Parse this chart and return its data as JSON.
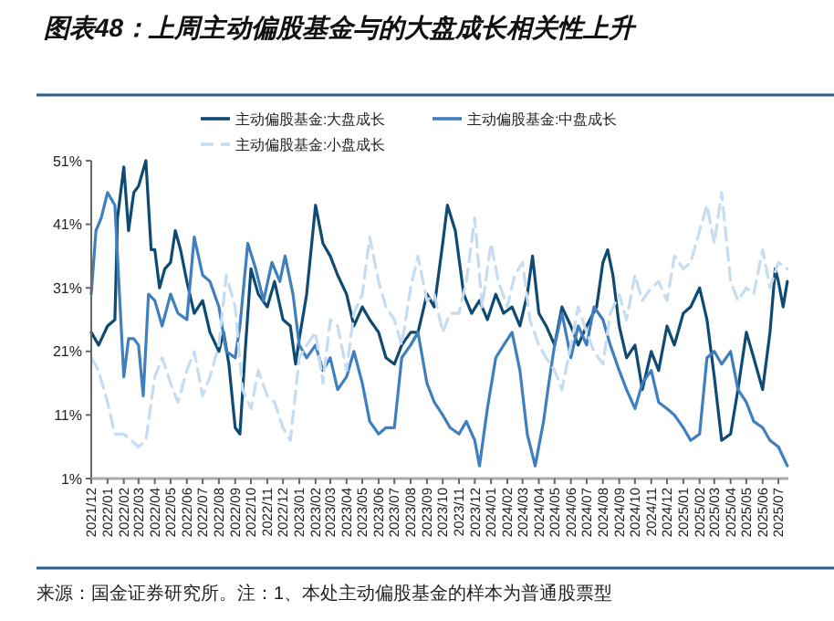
{
  "chart_data": {
    "type": "line",
    "title": "图表48：上周主动偏股基金与的大盘成长相关性上升",
    "annotations": [
      "来源：国金证券研究所。注：1、本处主动偏股基金的样本为普通股票型"
    ],
    "legend": "top",
    "grid": false,
    "xlim": [
      "2021-12-01",
      "2025-07-20"
    ],
    "ylim": [
      1,
      51
    ],
    "yticks": [
      {
        "value": 1,
        "label": "1%"
      },
      {
        "value": 11,
        "label": "11%"
      },
      {
        "value": 21,
        "label": "21%"
      },
      {
        "value": 31,
        "label": "31%"
      },
      {
        "value": 41,
        "label": "41%"
      },
      {
        "value": 51,
        "label": "51%"
      }
    ],
    "xticks": [
      {
        "value": "2021-12-01",
        "label": "2021/12"
      },
      {
        "value": "2022-01-01",
        "label": "2022/01"
      },
      {
        "value": "2022-02-01",
        "label": "2022/02"
      },
      {
        "value": "2022-03-01",
        "label": "2022/03"
      },
      {
        "value": "2022-04-01",
        "label": "2022/04"
      },
      {
        "value": "2022-05-01",
        "label": "2022/05"
      },
      {
        "value": "2022-06-01",
        "label": "2022/06"
      },
      {
        "value": "2022-07-01",
        "label": "2022/07"
      },
      {
        "value": "2022-08-01",
        "label": "2022/08"
      },
      {
        "value": "2022-09-01",
        "label": "2022/09"
      },
      {
        "value": "2022-10-01",
        "label": "2022/10"
      },
      {
        "value": "2022-11-01",
        "label": "2022/11"
      },
      {
        "value": "2022-12-01",
        "label": "2022/12"
      },
      {
        "value": "2023-01-01",
        "label": "2023/01"
      },
      {
        "value": "2023-02-01",
        "label": "2023/02"
      },
      {
        "value": "2023-03-01",
        "label": "2023/03"
      },
      {
        "value": "2023-04-01",
        "label": "2023/04"
      },
      {
        "value": "2023-05-01",
        "label": "2023/05"
      },
      {
        "value": "2023-06-01",
        "label": "2023/06"
      },
      {
        "value": "2023-07-01",
        "label": "2023/07"
      },
      {
        "value": "2023-08-01",
        "label": "2023/08"
      },
      {
        "value": "2023-09-01",
        "label": "2023/09"
      },
      {
        "value": "2023-10-01",
        "label": "2023/10"
      },
      {
        "value": "2023-11-01",
        "label": "2023/11"
      },
      {
        "value": "2023-12-01",
        "label": "2023/12"
      },
      {
        "value": "2024-01-01",
        "label": "2024/01"
      },
      {
        "value": "2024-02-01",
        "label": "2024/02"
      },
      {
        "value": "2024-03-01",
        "label": "2024/03"
      },
      {
        "value": "2024-04-01",
        "label": "2024/04"
      },
      {
        "value": "2024-05-01",
        "label": "2024/05"
      },
      {
        "value": "2024-06-01",
        "label": "2024/06"
      },
      {
        "value": "2024-07-01",
        "label": "2024/07"
      },
      {
        "value": "2024-08-01",
        "label": "2024/08"
      },
      {
        "value": "2024-09-01",
        "label": "2024/09"
      },
      {
        "value": "2024-10-01",
        "label": "2024/10"
      },
      {
        "value": "2024-11-01",
        "label": "2024/11"
      },
      {
        "value": "2024-12-01",
        "label": "2024/12"
      },
      {
        "value": "2025-01-01",
        "label": "2025/01"
      },
      {
        "value": "2025-02-01",
        "label": "2025/02"
      },
      {
        "value": "2025-03-01",
        "label": "2025/03"
      },
      {
        "value": "2025-04-01",
        "label": "2025/04"
      },
      {
        "value": "2025-05-01",
        "label": "2025/05"
      },
      {
        "value": "2025-06-01",
        "label": "2025/06"
      },
      {
        "value": "2025-07-01",
        "label": "2025/07"
      }
    ],
    "series": [
      {
        "name": "主动偏股基金:大盘成长",
        "color": "#0e4a72",
        "line_style": "solid",
        "x": [
          "2021-12-01",
          "2021-12-15",
          "2022-01-01",
          "2022-01-15",
          "2022-01-20",
          "2022-02-01",
          "2022-02-10",
          "2022-02-20",
          "2022-03-01",
          "2022-03-15",
          "2022-03-25",
          "2022-04-01",
          "2022-04-10",
          "2022-04-20",
          "2022-05-01",
          "2022-05-10",
          "2022-05-20",
          "2022-06-01",
          "2022-06-15",
          "2022-07-01",
          "2022-07-15",
          "2022-08-01",
          "2022-08-10",
          "2022-08-20",
          "2022-09-01",
          "2022-09-10",
          "2022-09-20",
          "2022-10-01",
          "2022-10-15",
          "2022-11-01",
          "2022-11-15",
          "2022-12-01",
          "2022-12-15",
          "2022-12-25",
          "2023-01-01",
          "2023-01-15",
          "2023-02-01",
          "2023-02-15",
          "2023-03-01",
          "2023-03-15",
          "2023-04-01",
          "2023-04-15",
          "2023-05-01",
          "2023-05-15",
          "2023-06-01",
          "2023-06-15",
          "2023-07-01",
          "2023-07-15",
          "2023-08-01",
          "2023-08-15",
          "2023-09-01",
          "2023-09-15",
          "2023-10-01",
          "2023-10-10",
          "2023-10-25",
          "2023-11-10",
          "2023-11-25",
          "2023-12-10",
          "2023-12-25",
          "2024-01-10",
          "2024-01-25",
          "2024-02-10",
          "2024-02-25",
          "2024-03-10",
          "2024-03-20",
          "2024-04-01",
          "2024-04-15",
          "2024-05-01",
          "2024-05-15",
          "2024-06-01",
          "2024-06-15",
          "2024-07-01",
          "2024-07-20",
          "2024-08-01",
          "2024-08-10",
          "2024-08-20",
          "2024-09-01",
          "2024-09-15",
          "2024-10-01",
          "2024-10-15",
          "2024-11-01",
          "2024-11-15",
          "2024-12-01",
          "2024-12-15",
          "2025-01-01",
          "2025-01-15",
          "2025-02-01",
          "2025-02-15",
          "2025-03-01",
          "2025-03-15",
          "2025-04-01",
          "2025-04-15",
          "2025-05-01",
          "2025-05-15",
          "2025-06-01",
          "2025-06-15",
          "2025-06-25",
          "2025-07-01",
          "2025-07-10",
          "2025-07-18"
        ],
        "values": [
          24,
          22,
          25,
          26,
          42,
          50,
          40,
          46,
          47,
          51,
          37,
          37,
          31,
          34,
          35,
          40,
          37,
          32,
          27,
          29,
          24,
          21,
          24,
          19,
          9,
          8,
          21,
          34,
          30,
          28,
          32,
          26,
          25,
          19,
          23,
          30,
          44,
          38,
          36,
          33,
          30,
          25,
          28,
          26,
          24,
          20,
          19,
          22,
          24,
          24,
          30,
          28,
          38,
          44,
          40,
          30,
          27,
          29,
          26,
          30,
          27,
          28,
          25,
          30,
          36,
          27,
          25,
          22,
          28,
          25,
          22,
          25,
          28,
          35,
          37,
          33,
          25,
          20,
          22,
          15,
          21,
          18,
          25,
          22,
          27,
          28,
          31,
          26,
          17,
          7,
          8,
          15,
          24,
          20,
          15,
          24,
          34,
          32,
          28,
          32
        ]
      },
      {
        "name": "主动偏股基金:中盘成长",
        "color": "#3f7fbf",
        "line_style": "solid",
        "x": [
          "2021-12-01",
          "2021-12-10",
          "2021-12-20",
          "2022-01-01",
          "2022-01-15",
          "2022-01-25",
          "2022-02-01",
          "2022-02-10",
          "2022-02-20",
          "2022-03-01",
          "2022-03-10",
          "2022-03-20",
          "2022-04-01",
          "2022-04-15",
          "2022-05-01",
          "2022-05-15",
          "2022-06-01",
          "2022-06-15",
          "2022-07-01",
          "2022-07-15",
          "2022-08-01",
          "2022-08-15",
          "2022-09-01",
          "2022-09-10",
          "2022-09-25",
          "2022-10-10",
          "2022-10-25",
          "2022-11-10",
          "2022-11-25",
          "2022-12-05",
          "2022-12-20",
          "2023-01-01",
          "2023-01-15",
          "2023-02-01",
          "2023-02-15",
          "2023-03-01",
          "2023-03-15",
          "2023-04-01",
          "2023-04-15",
          "2023-05-01",
          "2023-05-15",
          "2023-06-01",
          "2023-06-15",
          "2023-07-01",
          "2023-07-15",
          "2023-08-01",
          "2023-08-15",
          "2023-09-01",
          "2023-09-15",
          "2023-10-01",
          "2023-10-15",
          "2023-11-01",
          "2023-11-15",
          "2023-12-01",
          "2023-12-10",
          "2023-12-25",
          "2024-01-10",
          "2024-01-25",
          "2024-02-10",
          "2024-02-25",
          "2024-03-10",
          "2024-03-25",
          "2024-04-10",
          "2024-04-20",
          "2024-05-01",
          "2024-05-15",
          "2024-06-01",
          "2024-06-15",
          "2024-07-01",
          "2024-07-15",
          "2024-08-01",
          "2024-08-15",
          "2024-09-01",
          "2024-09-15",
          "2024-10-01",
          "2024-10-15",
          "2024-11-01",
          "2024-11-15",
          "2024-12-01",
          "2024-12-15",
          "2025-01-01",
          "2025-01-15",
          "2025-02-01",
          "2025-02-15",
          "2025-03-01",
          "2025-03-15",
          "2025-04-01",
          "2025-04-15",
          "2025-05-01",
          "2025-05-15",
          "2025-06-01",
          "2025-06-15",
          "2025-07-01",
          "2025-07-18"
        ],
        "values": [
          30,
          40,
          42,
          46,
          44,
          28,
          17,
          23,
          23,
          22,
          14,
          30,
          29,
          25,
          30,
          27,
          26,
          39,
          33,
          32,
          28,
          21,
          20,
          25,
          38,
          34,
          29,
          35,
          32,
          36,
          30,
          22,
          20,
          22,
          18,
          20,
          15,
          17,
          21,
          16,
          10,
          8,
          9,
          9,
          20,
          22,
          24,
          16,
          13,
          11,
          9,
          8,
          10,
          7,
          3,
          12,
          20,
          22,
          24,
          18,
          8,
          3,
          10,
          16,
          22,
          27,
          20,
          25,
          22,
          28,
          26,
          22,
          18,
          15,
          12,
          16,
          18,
          13,
          12,
          11,
          9,
          7,
          8,
          20,
          21,
          19,
          21,
          15,
          13,
          10,
          9,
          7,
          6,
          3
        ]
      },
      {
        "name": "主动偏股基金:小盘成长",
        "color": "#c6dcf0",
        "line_style": "dashed",
        "x": [
          "2021-12-01",
          "2021-12-15",
          "2022-01-01",
          "2022-01-15",
          "2022-02-01",
          "2022-02-15",
          "2022-03-01",
          "2022-03-15",
          "2022-04-01",
          "2022-04-15",
          "2022-05-01",
          "2022-05-15",
          "2022-06-01",
          "2022-06-15",
          "2022-07-01",
          "2022-07-15",
          "2022-08-01",
          "2022-08-15",
          "2022-09-01",
          "2022-09-15",
          "2022-10-01",
          "2022-10-15",
          "2022-11-01",
          "2022-11-15",
          "2022-12-01",
          "2022-12-15",
          "2023-01-01",
          "2023-01-15",
          "2023-02-01",
          "2023-02-15",
          "2023-03-01",
          "2023-03-15",
          "2023-04-01",
          "2023-04-15",
          "2023-05-01",
          "2023-05-15",
          "2023-06-01",
          "2023-06-15",
          "2023-07-01",
          "2023-07-15",
          "2023-08-01",
          "2023-08-15",
          "2023-09-01",
          "2023-09-15",
          "2023-10-01",
          "2023-10-15",
          "2023-11-01",
          "2023-11-15",
          "2023-12-01",
          "2023-12-15",
          "2024-01-01",
          "2024-01-15",
          "2024-02-01",
          "2024-02-15",
          "2024-03-01",
          "2024-03-15",
          "2024-04-01",
          "2024-04-15",
          "2024-05-01",
          "2024-05-15",
          "2024-06-01",
          "2024-06-15",
          "2024-07-01",
          "2024-07-15",
          "2024-08-01",
          "2024-08-15",
          "2024-09-01",
          "2024-09-15",
          "2024-10-01",
          "2024-10-15",
          "2024-11-01",
          "2024-11-15",
          "2024-12-01",
          "2024-12-15",
          "2025-01-01",
          "2025-01-15",
          "2025-02-01",
          "2025-02-15",
          "2025-03-01",
          "2025-03-15",
          "2025-04-01",
          "2025-04-15",
          "2025-05-01",
          "2025-05-15",
          "2025-06-01",
          "2025-06-15",
          "2025-07-01",
          "2025-07-18"
        ],
        "values": [
          20,
          18,
          13,
          8,
          8,
          7,
          6,
          7,
          17,
          20,
          16,
          13,
          18,
          21,
          14,
          17,
          22,
          33,
          28,
          15,
          12,
          18,
          14,
          13,
          9,
          7,
          20,
          22,
          24,
          16,
          26,
          25,
          18,
          27,
          30,
          39,
          32,
          28,
          26,
          22,
          31,
          36,
          29,
          30,
          24,
          27,
          27,
          32,
          42,
          28,
          38,
          32,
          28,
          33,
          35,
          26,
          22,
          20,
          18,
          15,
          22,
          28,
          24,
          21,
          19,
          27,
          30,
          26,
          33,
          29,
          31,
          32,
          29,
          36,
          34,
          35,
          40,
          44,
          38,
          46,
          32,
          29,
          31,
          30,
          37,
          31,
          35,
          34
        ]
      }
    ]
  }
}
